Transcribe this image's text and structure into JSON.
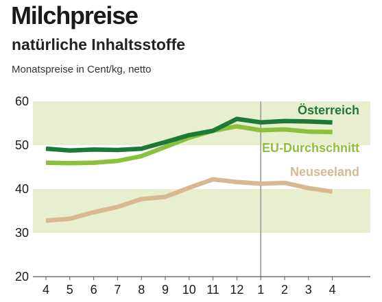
{
  "colors": {
    "band": "#e8efcf",
    "axis": "#555555",
    "divider": "#9a9a9a"
  },
  "chart_data": {
    "type": "line",
    "title": "Milchpreise",
    "subtitle": "natürliche Inhaltsstoffe",
    "ylabel": "Monatspreise in Cent/kg, netto",
    "categories": [
      "4",
      "5",
      "6",
      "7",
      "8",
      "9",
      "10",
      "11",
      "12",
      "1",
      "2",
      "3",
      "4"
    ],
    "y_ticks": [
      "60",
      "50",
      "40",
      "30",
      "20"
    ],
    "ylim": [
      20,
      60
    ],
    "grid": "alternating horizontal bands",
    "year_divider_after_index": 9,
    "series": [
      {
        "name": "Österreich",
        "color": "#1d7a36",
        "values": [
          49.2,
          48.8,
          49.0,
          48.9,
          49.2,
          50.7,
          52.3,
          53.3,
          56.0,
          55.2,
          55.5,
          55.4,
          55.2
        ]
      },
      {
        "name": "EU-Durchschnitt",
        "color": "#8cbf3c",
        "values": [
          46.0,
          45.9,
          46.0,
          46.4,
          47.5,
          49.6,
          51.7,
          53.3,
          54.3,
          53.4,
          53.6,
          53.1,
          53.0
        ]
      },
      {
        "name": "Neuseeland",
        "color": "#d7b991",
        "values": [
          32.8,
          33.2,
          34.7,
          35.9,
          37.7,
          38.2,
          40.3,
          42.2,
          41.6,
          41.2,
          41.4,
          40.2,
          39.4
        ]
      }
    ]
  }
}
